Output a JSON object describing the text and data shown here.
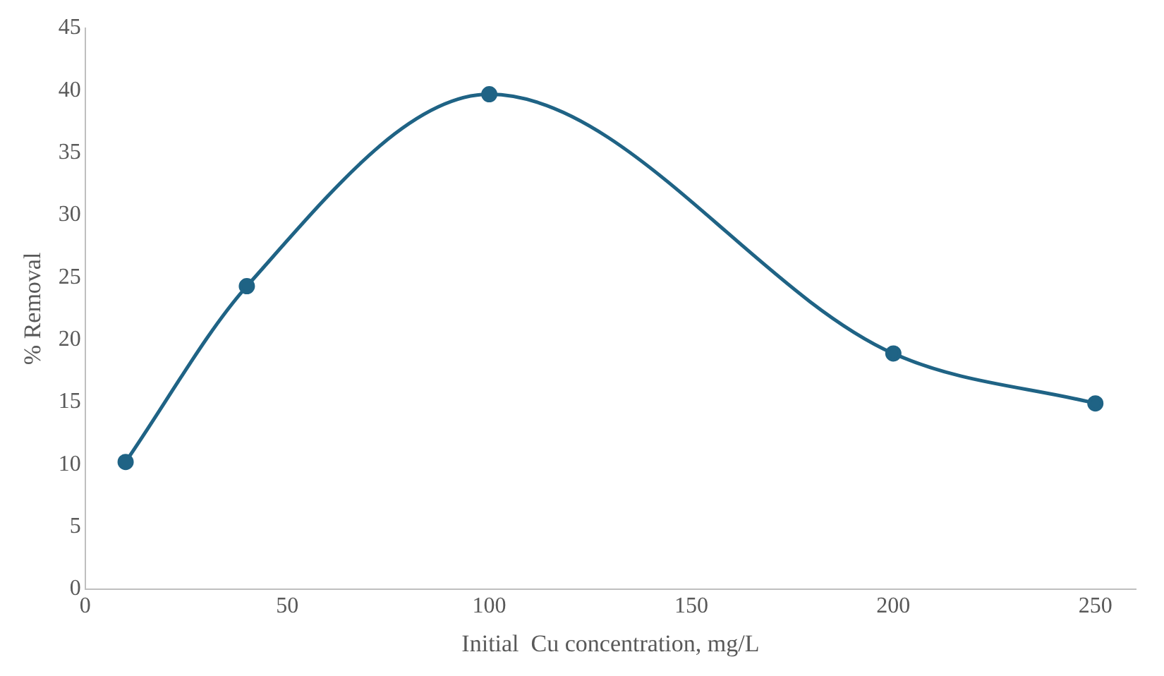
{
  "chart_data": {
    "type": "line",
    "xlabel": "Initial  Cu concentration, mg/L",
    "ylabel": "% Removal",
    "x": [
      10,
      40,
      100,
      200,
      250
    ],
    "series": [
      {
        "color": "#1f6385",
        "values": [
          10.2,
          24.3,
          39.7,
          18.9,
          14.9
        ]
      }
    ],
    "xlim": [
      0,
      260
    ],
    "xticks": [
      0,
      50,
      100,
      150,
      200,
      250
    ],
    "ylim": [
      0,
      45
    ],
    "yticks": [
      0,
      5,
      10,
      15,
      20,
      25,
      30,
      35,
      40,
      45
    ],
    "grid": false,
    "legend": false,
    "marker": "circle",
    "line_style": "solid"
  }
}
